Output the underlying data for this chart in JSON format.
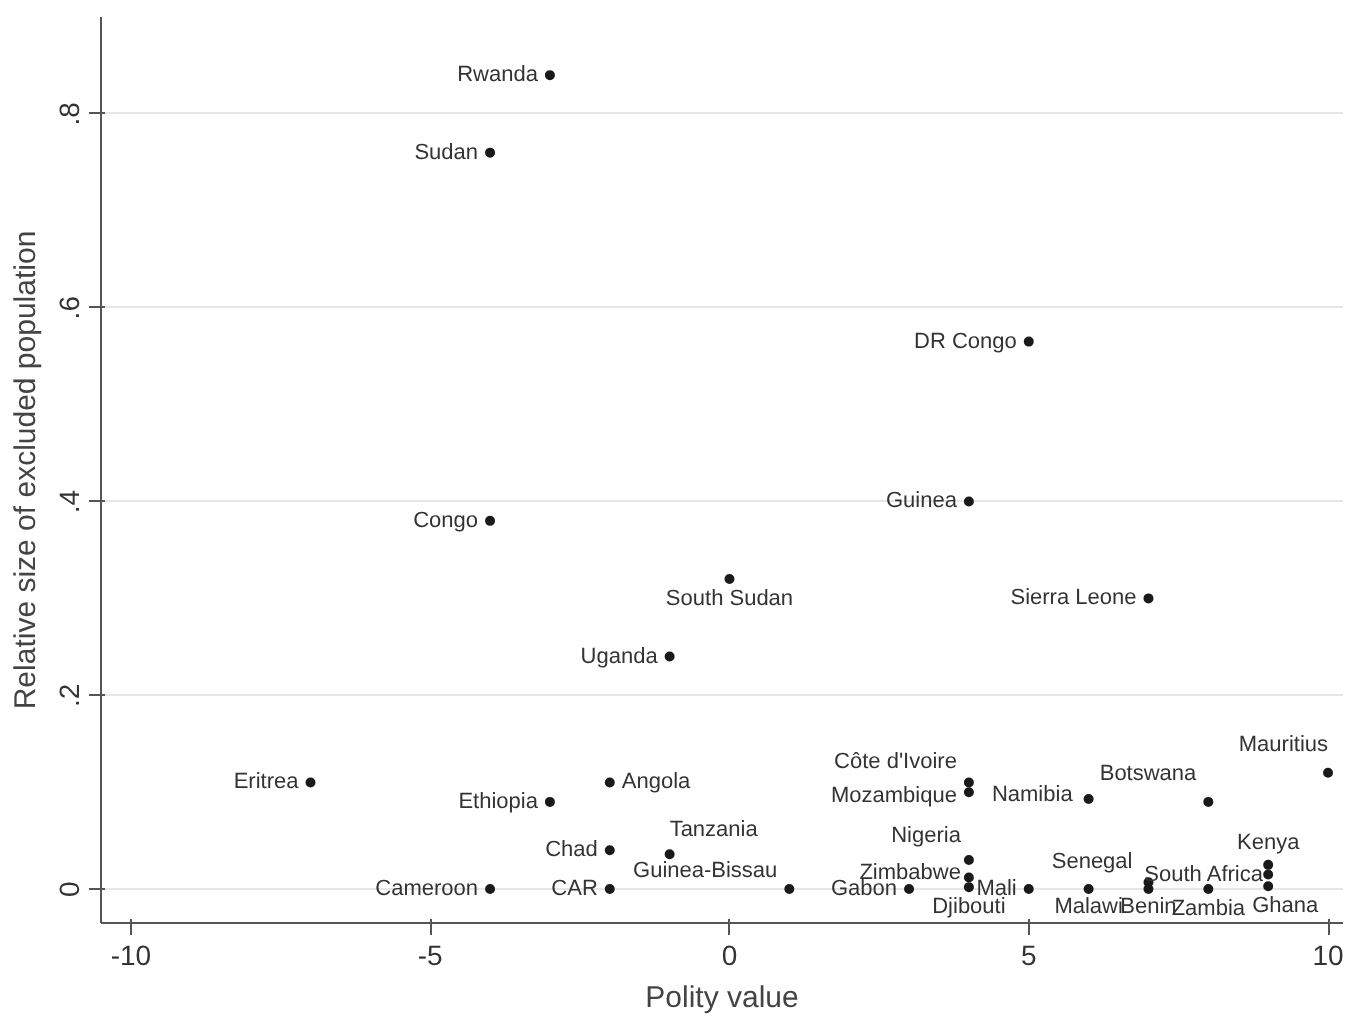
{
  "chart_data": {
    "type": "scatter",
    "xlabel": "Polity value",
    "ylabel": "Relative size of excluded population",
    "xlim": [
      -10.5,
      10.25
    ],
    "ylim": [
      -0.035,
      0.9
    ],
    "xticks": [
      -10,
      -5,
      0,
      5,
      10
    ],
    "yticks": [
      {
        "value": 0,
        "label": "0"
      },
      {
        "value": 0.2,
        "label": ".2"
      },
      {
        "value": 0.4,
        "label": ".4"
      },
      {
        "value": 0.6,
        "label": ".6"
      },
      {
        "value": 0.8,
        "label": ".8"
      }
    ],
    "grid": "y",
    "marker": "circle",
    "series": [
      {
        "color": "#1a1a1a",
        "x": [
          -3,
          -4,
          5,
          4,
          -4,
          0,
          -1,
          7,
          10,
          -7,
          -2,
          -3,
          4,
          4,
          6,
          8,
          -2,
          -1,
          4,
          4,
          4,
          9,
          9,
          9,
          1,
          3,
          5,
          6,
          7,
          7,
          8,
          -4,
          -2
        ],
        "values": [
          0.84,
          0.76,
          0.565,
          0.4,
          0.38,
          0.32,
          0.24,
          0.3,
          0.12,
          0.11,
          0.11,
          0.09,
          0.11,
          0.1,
          0.093,
          0.09,
          0.04,
          0.036,
          0.03,
          0.012,
          0.002,
          0.025,
          0.015,
          0.003,
          0,
          0,
          0,
          0,
          0.007,
          0,
          0,
          0,
          0
        ]
      }
    ],
    "annotations": [
      {
        "text": "Rwanda",
        "x": -3,
        "y": 0.84
      },
      {
        "text": "Sudan",
        "x": -4,
        "y": 0.76
      },
      {
        "text": "DR Congo",
        "x": 5,
        "y": 0.565
      },
      {
        "text": "Guinea",
        "x": 4,
        "y": 0.4
      },
      {
        "text": "Congo",
        "x": -4,
        "y": 0.38
      },
      {
        "text": "South Sudan",
        "x": 0,
        "y": 0.32
      },
      {
        "text": "Uganda",
        "x": -1,
        "y": 0.24
      },
      {
        "text": "Sierra Leone",
        "x": 7,
        "y": 0.3
      },
      {
        "text": "Mauritius",
        "x": 10,
        "y": 0.12
      },
      {
        "text": "Eritrea",
        "x": -7,
        "y": 0.11
      },
      {
        "text": "Angola",
        "x": -2,
        "y": 0.11
      },
      {
        "text": "Ethiopia",
        "x": -3,
        "y": 0.09
      },
      {
        "text": "Côte d'Ivoire",
        "x": 4,
        "y": 0.11
      },
      {
        "text": "Mozambique",
        "x": 4,
        "y": 0.1
      },
      {
        "text": "Namibia",
        "x": 6,
        "y": 0.093
      },
      {
        "text": "Botswana",
        "x": 8,
        "y": 0.09
      },
      {
        "text": "Chad",
        "x": -2,
        "y": 0.04
      },
      {
        "text": "Tanzania",
        "x": -1,
        "y": 0.036
      },
      {
        "text": "Nigeria",
        "x": 4,
        "y": 0.03
      },
      {
        "text": "Zimbabwe",
        "x": 4,
        "y": 0.012
      },
      {
        "text": "Djibouti",
        "x": 4,
        "y": 0.002
      },
      {
        "text": "Kenya",
        "x": 9,
        "y": 0.025
      },
      {
        "text": "South Africa",
        "x": 9,
        "y": 0.015
      },
      {
        "text": "Ghana",
        "x": 9,
        "y": 0.003
      },
      {
        "text": "Guinea-Bissau",
        "x": 1,
        "y": 0
      },
      {
        "text": "Gabon",
        "x": 3,
        "y": 0
      },
      {
        "text": "Mali",
        "x": 5,
        "y": 0
      },
      {
        "text": "Malawi",
        "x": 6,
        "y": 0
      },
      {
        "text": "Senegal",
        "x": 7,
        "y": 0.007
      },
      {
        "text": "Benin",
        "x": 7,
        "y": 0
      },
      {
        "text": "Zambia",
        "x": 8,
        "y": 0
      },
      {
        "text": "Cameroon",
        "x": -4,
        "y": 0
      },
      {
        "text": "CAR",
        "x": -2,
        "y": 0
      }
    ]
  }
}
